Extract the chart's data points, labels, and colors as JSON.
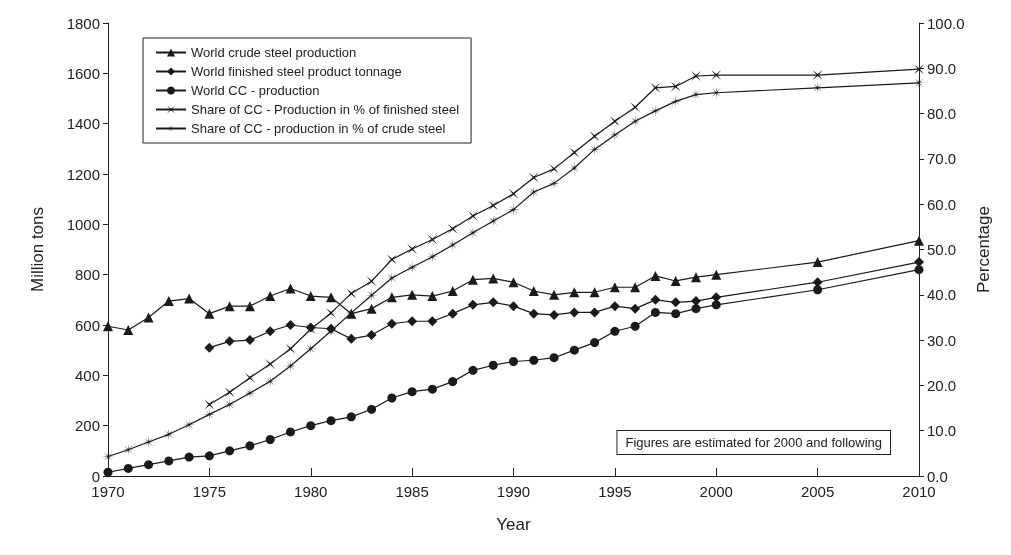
{
  "chart_data": {
    "type": "line",
    "xlabel": "Year",
    "ylabel": "Million tons",
    "y2label": "Percentage",
    "xlim": [
      1970,
      2010
    ],
    "xticks": [
      1970,
      1975,
      1980,
      1985,
      1990,
      1995,
      2000,
      2005,
      2010
    ],
    "ylim": [
      0,
      1800
    ],
    "yticks": [
      0,
      200,
      400,
      600,
      800,
      1000,
      1200,
      1400,
      1600,
      1800
    ],
    "y2lim": [
      0,
      100
    ],
    "y2ticks": [
      {
        "value": 0,
        "label": "0.0"
      },
      {
        "value": 10,
        "label": "10.0"
      },
      {
        "value": 20,
        "label": "20.0"
      },
      {
        "value": 30,
        "label": "30.0"
      },
      {
        "value": 40,
        "label": "40.0"
      },
      {
        "value": 50,
        "label": "50.0"
      },
      {
        "value": 60,
        "label": "60.0"
      },
      {
        "value": 70,
        "label": "70.0"
      },
      {
        "value": 80,
        "label": "80.0"
      },
      {
        "value": 90,
        "label": "90.0"
      },
      {
        "value": 100,
        "label": "100.0"
      }
    ],
    "grid": false,
    "legend": "top left",
    "line_style": "solid",
    "annotations": [
      "Figures are estimated for 2000 and following"
    ],
    "series": [
      {
        "name": "World crude steel production",
        "color": "#1a1a1a",
        "marker": "triangle",
        "x": [
          1970,
          1971,
          1972,
          1973,
          1974,
          1975,
          1976,
          1977,
          1978,
          1979,
          1980,
          1981,
          1982,
          1983,
          1984,
          1985,
          1986,
          1987,
          1988,
          1989,
          1990,
          1991,
          1992,
          1993,
          1994,
          1995,
          1996,
          1997,
          1998,
          1999,
          2000,
          2005,
          2010
        ],
        "values": [
          595,
          580,
          630,
          695,
          705,
          645,
          675,
          675,
          715,
          745,
          715,
          710,
          645,
          665,
          710,
          720,
          715,
          735,
          780,
          785,
          770,
          735,
          720,
          730,
          730,
          750,
          750,
          795,
          775,
          790,
          800,
          850,
          935
        ]
      },
      {
        "name": "World finished steel product tonnage",
        "color": "#1a1a1a",
        "marker": "diamond",
        "x": [
          1975,
          1976,
          1977,
          1978,
          1979,
          1980,
          1981,
          1982,
          1983,
          1984,
          1985,
          1986,
          1987,
          1988,
          1989,
          1990,
          1991,
          1992,
          1993,
          1994,
          1995,
          1996,
          1997,
          1998,
          1999,
          2000,
          2005,
          2010
        ],
        "values": [
          510,
          535,
          540,
          575,
          600,
          590,
          585,
          545,
          560,
          605,
          615,
          615,
          645,
          680,
          690,
          675,
          645,
          640,
          650,
          650,
          675,
          665,
          700,
          690,
          695,
          710,
          770,
          850
        ]
      },
      {
        "name": "World CC - production",
        "color": "#1a1a1a",
        "marker": "circle",
        "x": [
          1970,
          1971,
          1972,
          1973,
          1974,
          1975,
          1976,
          1977,
          1978,
          1979,
          1980,
          1981,
          1982,
          1983,
          1984,
          1985,
          1986,
          1987,
          1988,
          1989,
          1990,
          1991,
          1992,
          1993,
          1994,
          1995,
          1996,
          1997,
          1998,
          1999,
          2000,
          2005,
          2010
        ],
        "values": [
          15,
          30,
          45,
          60,
          75,
          80,
          100,
          120,
          145,
          175,
          200,
          220,
          235,
          265,
          310,
          335,
          345,
          375,
          420,
          440,
          455,
          460,
          470,
          500,
          530,
          575,
          595,
          650,
          645,
          665,
          680,
          740,
          820
        ]
      },
      {
        "name": "Share of CC - Production in % of finished steel",
        "color": "#1a1a1a",
        "marker": "cross",
        "axis": "y2",
        "x": [
          1975,
          1976,
          1977,
          1978,
          1979,
          1980,
          1981,
          1982,
          1983,
          1984,
          1985,
          1986,
          1987,
          1988,
          1989,
          1990,
          1991,
          1992,
          1993,
          1994,
          1995,
          1996,
          1997,
          1998,
          1999,
          2000,
          2005,
          2010
        ],
        "values": [
          15.8,
          18.5,
          21.7,
          24.7,
          28.1,
          32.4,
          36,
          40.3,
          43,
          47.8,
          50.1,
          52.2,
          54.6,
          57.4,
          59.7,
          62.3,
          65.9,
          67.8,
          71.4,
          75,
          78.3,
          81.4,
          85.7,
          86,
          88.3,
          88.5,
          88.5,
          89.8
        ]
      },
      {
        "name": "Share of CC - production in % of crude steel",
        "color": "#1a1a1a",
        "marker": "star",
        "axis": "y2",
        "x": [
          1970,
          1971,
          1972,
          1973,
          1974,
          1975,
          1976,
          1977,
          1978,
          1979,
          1980,
          1981,
          1982,
          1983,
          1984,
          1985,
          1986,
          1987,
          1988,
          1989,
          1990,
          1991,
          1992,
          1993,
          1994,
          1995,
          1996,
          1997,
          1998,
          1999,
          2000,
          2005,
          2010
        ],
        "values": [
          4.3,
          5.8,
          7.5,
          9.2,
          11.3,
          13.6,
          15.8,
          18.3,
          20.9,
          24.3,
          28.1,
          32,
          36,
          39.9,
          43.7,
          46.1,
          48.4,
          51,
          53.7,
          56.3,
          58.8,
          62.7,
          64.6,
          68,
          72.1,
          75.3,
          78.3,
          80.6,
          82.7,
          84.2,
          84.6,
          85.7,
          86.8
        ]
      }
    ]
  }
}
